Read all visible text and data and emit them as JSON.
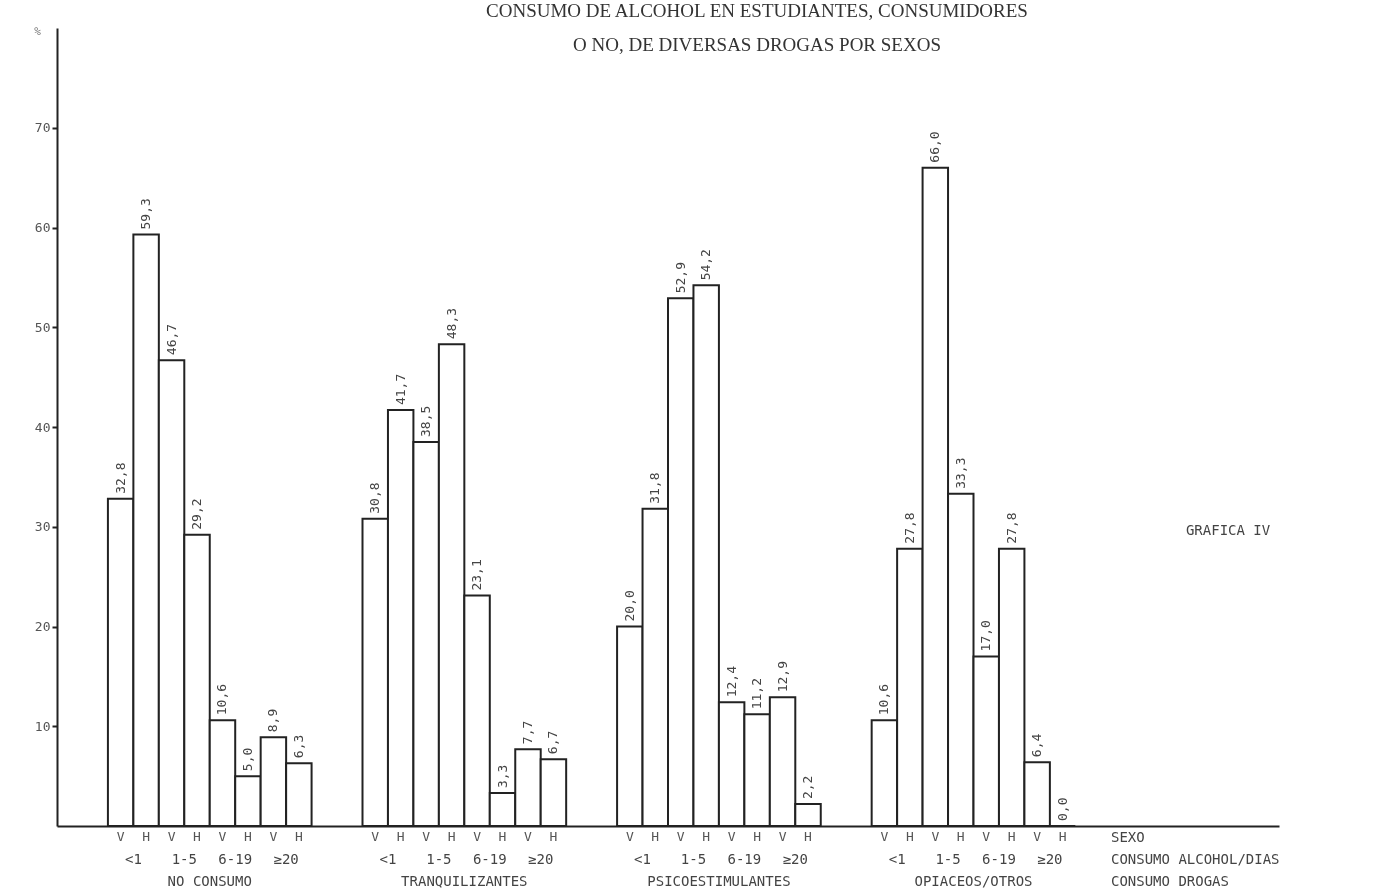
{
  "chart_data": {
    "type": "bar",
    "title": "CONSUMO DE ALCOHOL EN ESTUDIANTES, CONSUMIDORES\nO NO, DE DIVERSAS DROGAS POR SEXOS",
    "ylabel": "%",
    "categories": [
      "V",
      "H",
      "V",
      "H",
      "V",
      "H",
      "V",
      "H",
      null,
      null,
      "V",
      "H",
      "V",
      "H",
      "V",
      "H",
      "V",
      "H",
      null,
      null,
      "V",
      "H",
      "V",
      "H",
      "V",
      "H",
      "V",
      "H",
      null,
      null,
      "V",
      "H",
      "V",
      "H",
      "V",
      "H",
      "V",
      "H",
      null,
      null,
      null,
      null,
      null,
      null,
      null,
      null
    ],
    "values": [
      32.8,
      59.3,
      46.7,
      29.2,
      10.6,
      5.0,
      8.9,
      6.3,
      null,
      null,
      30.8,
      41.7,
      38.5,
      48.3,
      23.1,
      3.3,
      7.7,
      6.7,
      null,
      null,
      20.0,
      31.8,
      52.9,
      54.2,
      12.4,
      11.2,
      12.9,
      2.2,
      null,
      null,
      10.6,
      27.8,
      66.0,
      33.3,
      17.0,
      27.8,
      6.4,
      0.0,
      null,
      null,
      null,
      null,
      null,
      null,
      null,
      null
    ],
    "value_labels": [
      "32,8",
      "59,3",
      "46,7",
      "29,2",
      "10,6",
      "5,0",
      "8,9",
      "6,3",
      null,
      null,
      "30,8",
      "41,7",
      "38,5",
      "48,3",
      "23,1",
      "3,3",
      "7,7",
      "6,7",
      null,
      null,
      "20,0",
      "31,8",
      "52,9",
      "54,2",
      "12,4",
      "11,2",
      "12,9",
      "2,2",
      null,
      null,
      "10,6",
      "27,8",
      "66,0",
      "33,3",
      "17,0",
      "27,8",
      "6,4",
      "0,0",
      null,
      null,
      null,
      null,
      null,
      null,
      null,
      null
    ],
    "color": "#ffffff",
    "ylim": [
      0,
      80
    ],
    "yticks": [
      10,
      20,
      30,
      40,
      50,
      60,
      70
    ],
    "grid": false,
    "annotations": [
      "<1",
      "1-5",
      "6-19",
      "≥20",
      "<1",
      "1-5",
      "6-19",
      "≥20",
      "<1",
      "1-5",
      "6-19",
      "≥20",
      "<1",
      "1-5",
      "6-19",
      "≥20",
      "NO CONSUMO",
      "TRANQUILIZANTES",
      "PSICOESTIMULANTES",
      "OPIACEOS/OTROS",
      "SEXO",
      "CONSUMO ALCOHOL/DIAS",
      "CONSUMO DROGAS",
      "GRAFICA IV"
    ]
  }
}
